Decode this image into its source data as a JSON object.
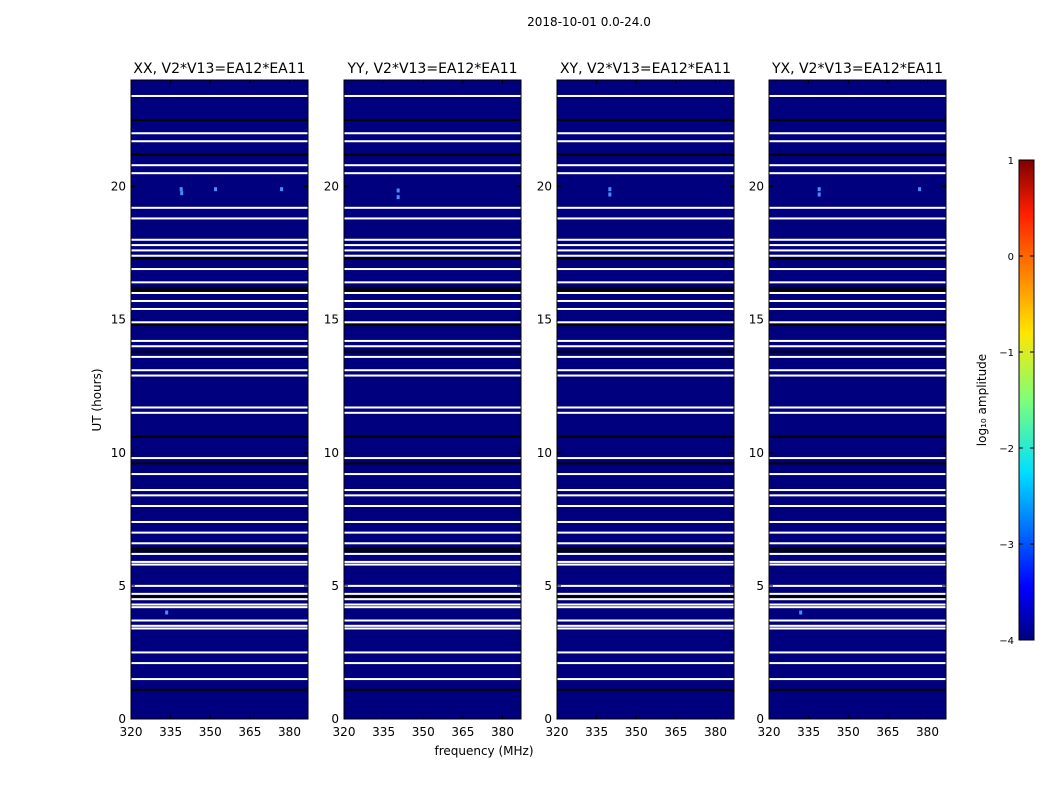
{
  "figure_title": "2018-10-01 0.0-24.0",
  "chart_data": {
    "type": "heatmap",
    "suptitle": "2018-10-01 0.0-24.0",
    "xlabel": "frequency (MHz)",
    "ylabel": "UT (hours)",
    "xlim": [
      320,
      387
    ],
    "ylim": [
      0,
      24
    ],
    "xticks": [
      320,
      335,
      350,
      365,
      380
    ],
    "yticks": [
      0,
      5,
      10,
      15,
      20
    ],
    "panels": [
      {
        "title": "XX, V2*V13=EA12*EA11",
        "spots": [
          {
            "freq": 339,
            "ut": 19.9
          },
          {
            "freq": 339.2,
            "ut": 19.75
          },
          {
            "freq": 352,
            "ut": 19.9
          },
          {
            "freq": 377,
            "ut": 19.9
          },
          {
            "freq": 333.5,
            "ut": 4.0
          }
        ]
      },
      {
        "title": "YY, V2*V13=EA12*EA11",
        "spots": [
          {
            "freq": 340.5,
            "ut": 19.85
          },
          {
            "freq": 340.5,
            "ut": 19.6
          }
        ]
      },
      {
        "title": "XY, V2*V13=EA12*EA11",
        "spots": [
          {
            "freq": 340,
            "ut": 19.9
          },
          {
            "freq": 340,
            "ut": 19.7
          }
        ]
      },
      {
        "title": "YX, V2*V13=EA12*EA11",
        "spots": [
          {
            "freq": 339,
            "ut": 19.9
          },
          {
            "freq": 339,
            "ut": 19.7
          },
          {
            "freq": 377,
            "ut": 19.9
          },
          {
            "freq": 332,
            "ut": 4.0
          }
        ]
      }
    ],
    "flagged_white_ut": [
      23.4,
      22.0,
      21.7,
      20.8,
      20.5,
      19.2,
      18.8,
      18.0,
      17.8,
      17.6,
      17.4,
      16.9,
      16.4,
      16.0,
      15.7,
      15.4,
      14.9,
      14.2,
      14.0,
      13.6,
      13.1,
      12.9,
      11.7,
      11.5,
      9.8,
      9.2,
      8.6,
      8.4,
      8.0,
      7.4,
      7.0,
      6.6,
      6.2,
      5.9,
      5.8,
      5.0,
      4.7,
      4.5,
      4.3,
      4.2,
      3.7,
      3.5,
      3.4,
      2.5,
      2.1,
      1.5
    ],
    "flagged_black_ut": [
      22.5,
      21.2,
      17.3,
      16.2,
      16.1,
      14.8,
      13.8,
      10.6,
      9.6,
      6.4,
      6.3,
      4.6,
      1.1
    ],
    "colorbar": {
      "label": "log₁₀ amplitude",
      "range": [
        -4,
        1
      ],
      "ticks": [
        "1",
        "0",
        "−1",
        "−2",
        "−3",
        "−4"
      ],
      "colormap": "jet"
    }
  }
}
